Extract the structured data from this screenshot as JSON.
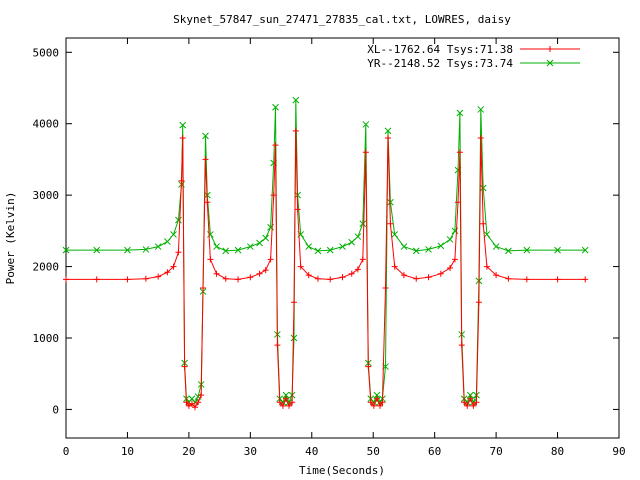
{
  "chart_data": {
    "type": "line",
    "title": "Skynet_57847_sun_27471_27835_cal.txt, LOWRES, daisy",
    "xlabel": "Time(Seconds)",
    "ylabel": "Power (Kelvin)",
    "xlim": [
      0,
      90
    ],
    "ylim": [
      -400,
      5200
    ],
    "x_ticks": [
      0,
      10,
      20,
      30,
      40,
      50,
      60,
      70,
      80,
      90
    ],
    "y_ticks": [
      0,
      1000,
      2000,
      3000,
      4000,
      5000
    ],
    "grid": false,
    "legend_position": "top-right",
    "series": [
      {
        "name": "XL--1762.64 Tsys:71.38",
        "color": "#ff0000",
        "marker": "plus",
        "points": [
          [
            0,
            1820
          ],
          [
            5,
            1820
          ],
          [
            10,
            1820
          ],
          [
            13,
            1830
          ],
          [
            15,
            1860
          ],
          [
            16.5,
            1920
          ],
          [
            17.5,
            2000
          ],
          [
            18.3,
            2200
          ],
          [
            18.8,
            3200
          ],
          [
            19.0,
            3800
          ],
          [
            19.3,
            600
          ],
          [
            19.6,
            100
          ],
          [
            20.0,
            50
          ],
          [
            20.5,
            80
          ],
          [
            21.0,
            30
          ],
          [
            21.5,
            100
          ],
          [
            22.0,
            200
          ],
          [
            22.3,
            1700
          ],
          [
            22.7,
            3500
          ],
          [
            23.0,
            2900
          ],
          [
            23.5,
            2100
          ],
          [
            24.5,
            1900
          ],
          [
            26,
            1830
          ],
          [
            28,
            1820
          ],
          [
            30,
            1850
          ],
          [
            31.5,
            1900
          ],
          [
            32.5,
            1950
          ],
          [
            33.3,
            2100
          ],
          [
            33.8,
            3000
          ],
          [
            34.1,
            3700
          ],
          [
            34.4,
            900
          ],
          [
            34.8,
            100
          ],
          [
            35.3,
            50
          ],
          [
            35.8,
            150
          ],
          [
            36.3,
            50
          ],
          [
            36.8,
            100
          ],
          [
            37.1,
            1500
          ],
          [
            37.4,
            3900
          ],
          [
            37.7,
            2800
          ],
          [
            38.2,
            2000
          ],
          [
            39.5,
            1880
          ],
          [
            41,
            1830
          ],
          [
            43,
            1820
          ],
          [
            45,
            1850
          ],
          [
            46.5,
            1900
          ],
          [
            47.5,
            1960
          ],
          [
            48.3,
            2100
          ],
          [
            48.8,
            3600
          ],
          [
            49.2,
            600
          ],
          [
            49.6,
            100
          ],
          [
            50.1,
            50
          ],
          [
            50.6,
            150
          ],
          [
            51.1,
            50
          ],
          [
            51.5,
            100
          ],
          [
            52.0,
            1700
          ],
          [
            52.4,
            3800
          ],
          [
            52.8,
            2600
          ],
          [
            53.5,
            2000
          ],
          [
            55,
            1880
          ],
          [
            57,
            1830
          ],
          [
            59,
            1850
          ],
          [
            61,
            1900
          ],
          [
            62.5,
            1980
          ],
          [
            63.3,
            2100
          ],
          [
            63.8,
            2900
          ],
          [
            64.1,
            3600
          ],
          [
            64.4,
            900
          ],
          [
            64.8,
            100
          ],
          [
            65.3,
            50
          ],
          [
            65.8,
            150
          ],
          [
            66.3,
            50
          ],
          [
            66.8,
            100
          ],
          [
            67.2,
            1500
          ],
          [
            67.5,
            3800
          ],
          [
            67.9,
            2600
          ],
          [
            68.5,
            2000
          ],
          [
            70,
            1880
          ],
          [
            72,
            1830
          ],
          [
            75,
            1820
          ],
          [
            80,
            1820
          ],
          [
            84.5,
            1820
          ]
        ]
      },
      {
        "name": "YR--2148.52 Tsys:73.74",
        "color": "#00b000",
        "marker": "cross",
        "points": [
          [
            0,
            2230
          ],
          [
            5,
            2230
          ],
          [
            10,
            2230
          ],
          [
            13,
            2240
          ],
          [
            15,
            2280
          ],
          [
            16.5,
            2350
          ],
          [
            17.5,
            2450
          ],
          [
            18.3,
            2650
          ],
          [
            18.8,
            3150
          ],
          [
            19.0,
            3980
          ],
          [
            19.3,
            650
          ],
          [
            19.6,
            150
          ],
          [
            20.0,
            100
          ],
          [
            20.5,
            150
          ],
          [
            21.0,
            100
          ],
          [
            21.5,
            180
          ],
          [
            22.0,
            350
          ],
          [
            22.3,
            1650
          ],
          [
            22.7,
            3830
          ],
          [
            23.0,
            3000
          ],
          [
            23.5,
            2450
          ],
          [
            24.5,
            2280
          ],
          [
            26,
            2220
          ],
          [
            28,
            2230
          ],
          [
            30,
            2280
          ],
          [
            31.5,
            2330
          ],
          [
            32.5,
            2400
          ],
          [
            33.3,
            2550
          ],
          [
            33.8,
            3450
          ],
          [
            34.1,
            4230
          ],
          [
            34.4,
            1050
          ],
          [
            34.8,
            150
          ],
          [
            35.3,
            100
          ],
          [
            35.8,
            200
          ],
          [
            36.3,
            100
          ],
          [
            36.8,
            200
          ],
          [
            37.1,
            1000
          ],
          [
            37.4,
            4330
          ],
          [
            37.7,
            3000
          ],
          [
            38.2,
            2450
          ],
          [
            39.5,
            2280
          ],
          [
            41,
            2220
          ],
          [
            43,
            2230
          ],
          [
            45,
            2280
          ],
          [
            46.5,
            2340
          ],
          [
            47.5,
            2420
          ],
          [
            48.3,
            2600
          ],
          [
            48.8,
            3990
          ],
          [
            49.2,
            650
          ],
          [
            49.6,
            150
          ],
          [
            50.1,
            100
          ],
          [
            50.6,
            200
          ],
          [
            51.1,
            100
          ],
          [
            51.5,
            150
          ],
          [
            52.0,
            600
          ],
          [
            52.4,
            3900
          ],
          [
            52.8,
            2900
          ],
          [
            53.5,
            2450
          ],
          [
            55,
            2280
          ],
          [
            57,
            2220
          ],
          [
            59,
            2240
          ],
          [
            61,
            2290
          ],
          [
            62.5,
            2380
          ],
          [
            63.3,
            2500
          ],
          [
            63.8,
            3350
          ],
          [
            64.1,
            4150
          ],
          [
            64.4,
            1050
          ],
          [
            64.8,
            150
          ],
          [
            65.3,
            100
          ],
          [
            65.8,
            200
          ],
          [
            66.3,
            100
          ],
          [
            66.8,
            200
          ],
          [
            67.2,
            1800
          ],
          [
            67.5,
            4200
          ],
          [
            67.9,
            3100
          ],
          [
            68.5,
            2450
          ],
          [
            70,
            2280
          ],
          [
            72,
            2220
          ],
          [
            75,
            2230
          ],
          [
            80,
            2230
          ],
          [
            84.5,
            2230
          ]
        ]
      }
    ]
  }
}
